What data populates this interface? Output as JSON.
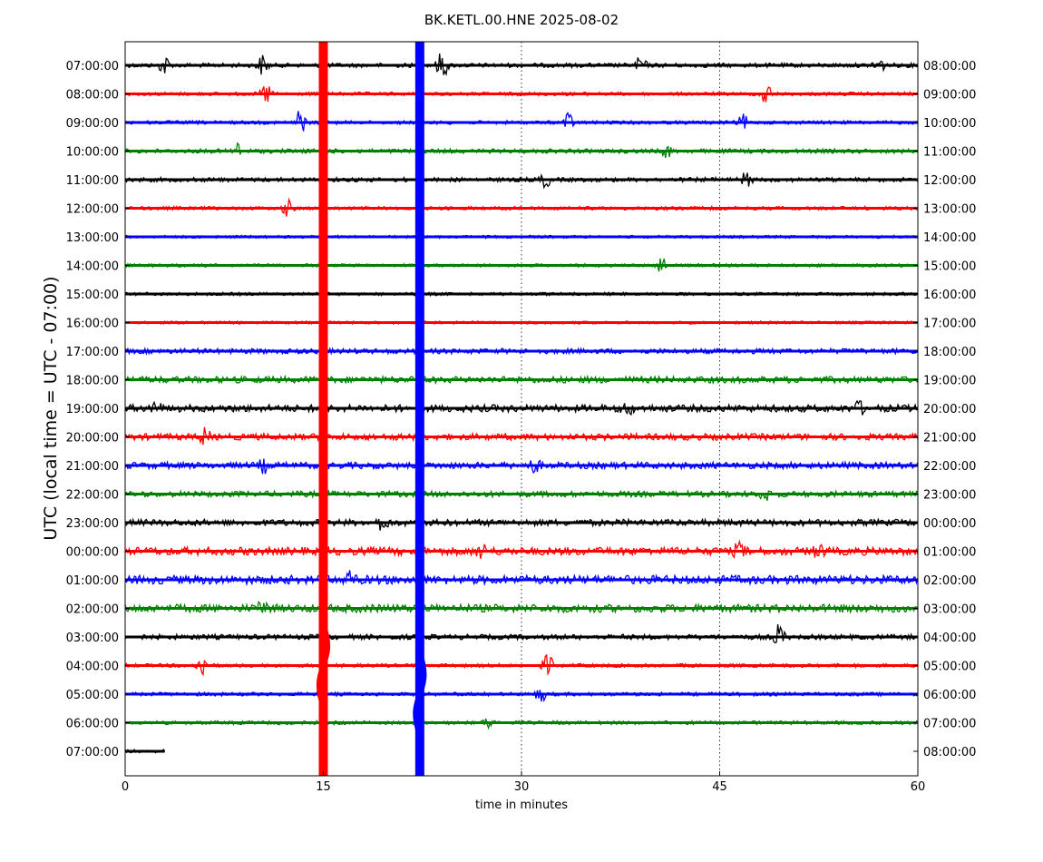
{
  "chart_data": {
    "type": "line",
    "title": "BK.KETL.00.HNE 2025-08-02",
    "xlabel": "time in minutes",
    "ylabel": "UTC (local time = UTC - 07:00)",
    "xlim": [
      0,
      60
    ],
    "x_ticks": [
      "0",
      "15",
      "30",
      "45",
      "60"
    ],
    "x_tick_values": [
      0,
      15,
      30,
      45,
      60
    ],
    "vertical_dotted_lines_at": [
      30,
      45
    ],
    "colors": [
      "#000000",
      "#ff0000",
      "#0000ff",
      "#008000"
    ],
    "left_labels": [
      "07:00:00",
      "08:00:00",
      "09:00:00",
      "10:00:00",
      "11:00:00",
      "12:00:00",
      "13:00:00",
      "14:00:00",
      "15:00:00",
      "16:00:00",
      "17:00:00",
      "18:00:00",
      "19:00:00",
      "20:00:00",
      "21:00:00",
      "22:00:00",
      "23:00:00",
      "00:00:00",
      "01:00:00",
      "02:00:00",
      "03:00:00",
      "04:00:00",
      "05:00:00",
      "06:00:00",
      "07:00:00"
    ],
    "right_labels": [
      "08:00:00",
      "09:00:00",
      "10:00:00",
      "11:00:00",
      "12:00:00",
      "13:00:00",
      "14:00:00",
      "15:00:00",
      "16:00:00",
      "17:00:00",
      "18:00:00",
      "19:00:00",
      "20:00:00",
      "21:00:00",
      "22:00:00",
      "23:00:00",
      "00:00:00",
      "01:00:00",
      "02:00:00",
      "03:00:00",
      "04:00:00",
      "05:00:00",
      "06:00:00",
      "07:00:00",
      "08:00:00"
    ],
    "trace_noise_level": [
      0.15,
      0.1,
      0.1,
      0.15,
      0.15,
      0.1,
      0.05,
      0.07,
      0.07,
      0.05,
      0.2,
      0.3,
      0.35,
      0.3,
      0.3,
      0.25,
      0.3,
      0.4,
      0.45,
      0.4,
      0.2,
      0.1,
      0.1,
      0.1,
      0.1
    ],
    "last_trace_end_minute": 3,
    "large_events": [
      {
        "minute": 15.0,
        "row": 21,
        "color": "#ff0000"
      },
      {
        "minute": 22.3,
        "row": 22,
        "color": "#0000ff"
      }
    ],
    "bursts": [
      {
        "row": 0,
        "minute": 3.0,
        "amp": 0.8
      },
      {
        "row": 0,
        "minute": 10.4,
        "amp": 0.8
      },
      {
        "row": 0,
        "minute": 24.0,
        "amp": 1.2
      },
      {
        "row": 0,
        "minute": 39.0,
        "amp": 0.7
      },
      {
        "row": 0,
        "minute": 57.0,
        "amp": 0.8
      },
      {
        "row": 1,
        "minute": 10.7,
        "amp": 0.9
      },
      {
        "row": 1,
        "minute": 48.5,
        "amp": 1.0
      },
      {
        "row": 2,
        "minute": 13.2,
        "amp": 1.2
      },
      {
        "row": 2,
        "minute": 33.5,
        "amp": 0.8
      },
      {
        "row": 2,
        "minute": 46.8,
        "amp": 0.6
      },
      {
        "row": 3,
        "minute": 8.5,
        "amp": 0.6
      },
      {
        "row": 3,
        "minute": 41.0,
        "amp": 0.5
      },
      {
        "row": 4,
        "minute": 31.8,
        "amp": 0.6
      },
      {
        "row": 4,
        "minute": 47.0,
        "amp": 0.6
      },
      {
        "row": 5,
        "minute": 12.3,
        "amp": 0.7
      },
      {
        "row": 7,
        "minute": 40.5,
        "amp": 0.9
      },
      {
        "row": 12,
        "minute": 2.3,
        "amp": 0.5
      },
      {
        "row": 12,
        "minute": 38.0,
        "amp": 0.5
      },
      {
        "row": 12,
        "minute": 55.5,
        "amp": 0.5
      },
      {
        "row": 13,
        "minute": 6.0,
        "amp": 0.6
      },
      {
        "row": 14,
        "minute": 10.5,
        "amp": 0.5
      },
      {
        "row": 14,
        "minute": 31.0,
        "amp": 0.5
      },
      {
        "row": 15,
        "minute": 48.5,
        "amp": 0.5
      },
      {
        "row": 16,
        "minute": 19.5,
        "amp": 0.6
      },
      {
        "row": 17,
        "minute": 27.0,
        "amp": 0.6
      },
      {
        "row": 17,
        "minute": 46.5,
        "amp": 0.6
      },
      {
        "row": 17,
        "minute": 52.5,
        "amp": 0.5
      },
      {
        "row": 18,
        "minute": 17.0,
        "amp": 0.6
      },
      {
        "row": 19,
        "minute": 10.5,
        "amp": 0.6
      },
      {
        "row": 20,
        "minute": 49.5,
        "amp": 1.0
      },
      {
        "row": 21,
        "minute": 5.8,
        "amp": 1.0
      },
      {
        "row": 21,
        "minute": 32.0,
        "amp": 0.9
      },
      {
        "row": 22,
        "minute": 31.5,
        "amp": 0.6
      },
      {
        "row": 23,
        "minute": 27.5,
        "amp": 0.4
      }
    ]
  }
}
